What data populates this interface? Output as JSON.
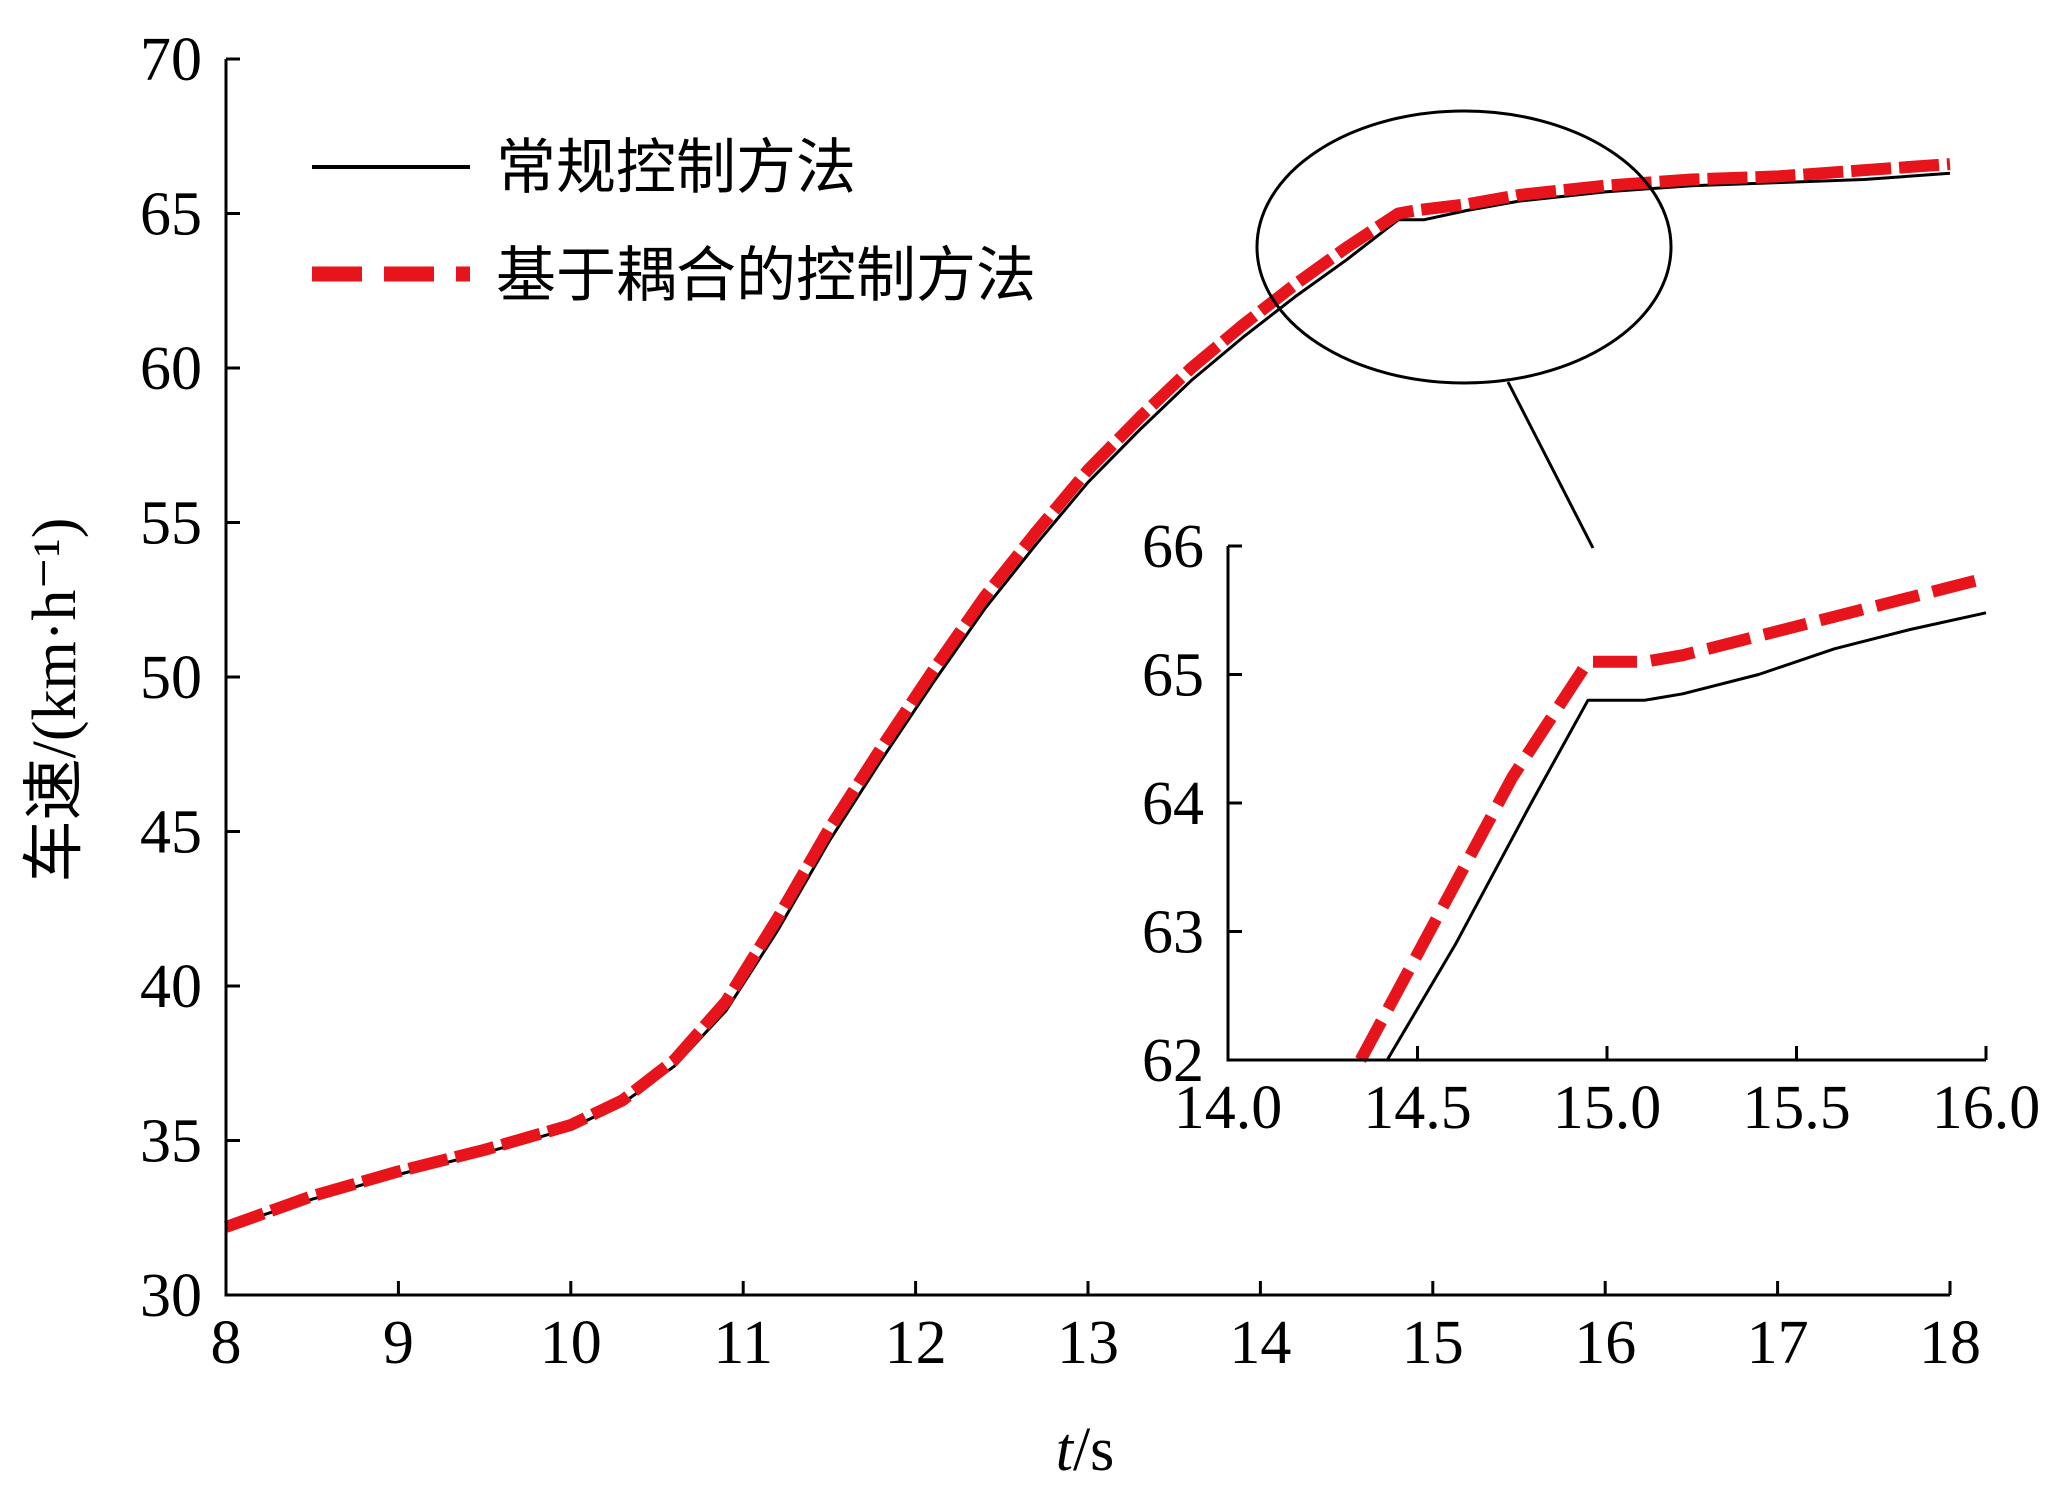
{
  "chart_data": [
    {
      "type": "line",
      "xlabel_var": "t",
      "xlabel_unit": "/s",
      "ylabel": "车速/(km·h⁻¹)",
      "xlim": [
        8,
        18
      ],
      "ylim": [
        30,
        70
      ],
      "xticks": [
        8,
        9,
        10,
        11,
        12,
        13,
        14,
        15,
        16,
        17,
        18
      ],
      "yticks": [
        30,
        35,
        40,
        45,
        50,
        55,
        60,
        65,
        70
      ],
      "grid": false,
      "legend_position": "top-left",
      "series": [
        {
          "name": "常规控制方法",
          "color": "#000000",
          "style": "solid",
          "x": [
            8.0,
            8.5,
            9.0,
            9.5,
            10.0,
            10.3,
            10.6,
            10.9,
            11.2,
            11.5,
            11.8,
            12.1,
            12.4,
            12.7,
            13.0,
            13.3,
            13.6,
            13.9,
            14.2,
            14.5,
            14.8,
            14.95,
            15.2,
            15.5,
            16.0,
            16.5,
            17.0,
            17.5,
            18.0
          ],
          "y": [
            32.2,
            33.1,
            33.9,
            34.6,
            35.4,
            36.2,
            37.4,
            39.2,
            41.8,
            44.7,
            47.3,
            49.8,
            52.2,
            54.3,
            56.3,
            58.0,
            59.6,
            61.0,
            62.3,
            63.5,
            64.8,
            64.8,
            65.1,
            65.4,
            65.7,
            65.9,
            66.0,
            66.1,
            66.3
          ]
        },
        {
          "name": "基于耦合的控制方法",
          "color": "#e8141c",
          "style": "dashed",
          "x": [
            8.0,
            8.5,
            9.0,
            9.5,
            10.0,
            10.3,
            10.6,
            10.9,
            11.2,
            11.5,
            11.8,
            12.1,
            12.4,
            12.7,
            13.0,
            13.3,
            13.6,
            13.9,
            14.2,
            14.5,
            14.8,
            14.9,
            15.2,
            15.5,
            16.0,
            16.5,
            17.0,
            17.5,
            18.0
          ],
          "y": [
            32.2,
            33.2,
            34.0,
            34.7,
            35.5,
            36.3,
            37.6,
            39.5,
            42.2,
            45.1,
            47.7,
            50.2,
            52.6,
            54.7,
            56.7,
            58.4,
            60.0,
            61.4,
            62.7,
            63.9,
            65.0,
            65.1,
            65.3,
            65.6,
            65.9,
            66.1,
            66.2,
            66.4,
            66.6
          ]
        }
      ]
    },
    {
      "type": "line",
      "role": "inset",
      "xlim": [
        14.0,
        16.0
      ],
      "ylim": [
        62,
        66
      ],
      "xticks": [
        "14.0",
        "14.5",
        "15.0",
        "15.5",
        "16.0"
      ],
      "yticks": [
        "62",
        "63",
        "64",
        "65",
        "66"
      ],
      "grid": false,
      "series": [
        {
          "name": "常规控制方法",
          "color": "#000000",
          "style": "solid",
          "x": [
            14.42,
            14.6,
            14.8,
            14.95,
            15.1,
            15.2,
            15.4,
            15.6,
            15.8,
            16.0
          ],
          "y": [
            62.0,
            62.9,
            64.0,
            64.8,
            64.8,
            64.85,
            65.0,
            65.2,
            65.35,
            65.48
          ]
        },
        {
          "name": "基于耦合的控制方法",
          "color": "#e8141c",
          "style": "dashed",
          "x": [
            14.35,
            14.55,
            14.75,
            14.95,
            15.1,
            15.2,
            15.4,
            15.6,
            15.8,
            16.0
          ],
          "y": [
            62.0,
            63.1,
            64.2,
            65.1,
            65.1,
            65.15,
            65.3,
            65.45,
            65.6,
            65.75
          ]
        }
      ]
    }
  ]
}
